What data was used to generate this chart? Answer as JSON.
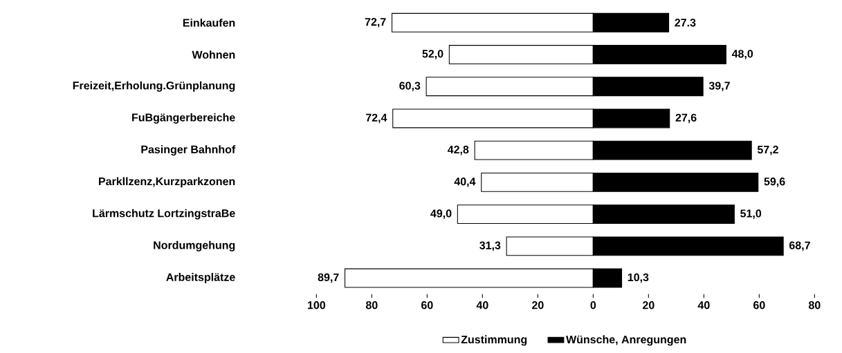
{
  "chart_data": {
    "type": "bar",
    "orientation": "horizontal",
    "categories": [
      "Einkaufen",
      "Wohnen",
      "Freizeit,Erholung.Grünplanung",
      "FuBgängerbereiche",
      "Pasinger Bahnhof",
      "Parkllzenz,Kurzparkzonen",
      "Lärmschutz LortzingstraBe",
      "Nordumgehung",
      "Arbeitsplätze"
    ],
    "series": [
      {
        "name": "Zustimmung",
        "color": "#ffffff",
        "base": [
          -72.7,
          -52.0,
          -60.3,
          -72.4,
          -42.8,
          -40.4,
          -49.0,
          -31.3,
          -89.7
        ],
        "values": [
          72.7,
          52.0,
          60.3,
          72.4,
          42.8,
          40.4,
          49.0,
          31.3,
          89.7
        ],
        "value_labels": [
          "72,7",
          "52,0",
          "60,3",
          "72,4",
          "42,8",
          "40,4",
          "49,0",
          "31,3",
          "89,7"
        ]
      },
      {
        "name": "Wünsche, Anregungen",
        "color": "#000000",
        "base": [
          0,
          0,
          0,
          0,
          0,
          0,
          0,
          0,
          0
        ],
        "values": [
          27.3,
          48.0,
          39.7,
          27.6,
          57.2,
          59.6,
          51.0,
          68.7,
          10.3
        ],
        "value_labels": [
          "27.3",
          "48,0",
          "39,7",
          "27,6",
          "57,2",
          "59,6",
          "51,0",
          "68,7",
          "10,3"
        ]
      }
    ],
    "xlim": [
      -100,
      80
    ],
    "xticks": [
      {
        "value": -100,
        "label": "100"
      },
      {
        "value": -80,
        "label": "80"
      },
      {
        "value": -60,
        "label": "60"
      },
      {
        "value": -40,
        "label": "40"
      },
      {
        "value": -20,
        "label": "20"
      },
      0,
      20,
      40,
      60,
      80
    ],
    "legend": "bottom"
  }
}
